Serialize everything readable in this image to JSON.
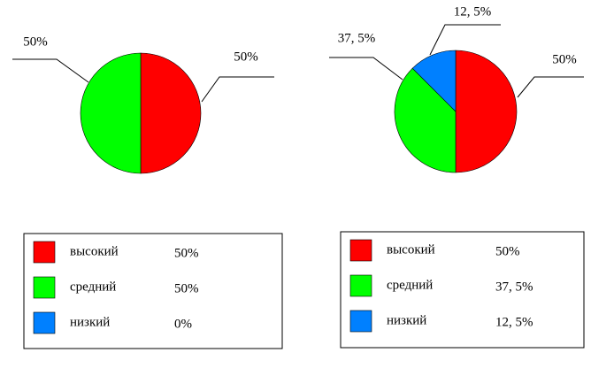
{
  "chart_data": [
    {
      "type": "pie",
      "categories": [
        "высокий",
        "средний",
        "низкий"
      ],
      "values": [
        50,
        50,
        0
      ],
      "value_labels": [
        "50%",
        "50%",
        "0%"
      ],
      "colors": [
        "#ff0000",
        "#00ff00",
        "#0080ff"
      ]
    },
    {
      "type": "pie",
      "categories": [
        "высокий",
        "средний",
        "низкий"
      ],
      "values": [
        50,
        37.5,
        12.5
      ],
      "value_labels": [
        "50%",
        "37, 5%",
        "12, 5%"
      ],
      "colors": [
        "#ff0000",
        "#00ff00",
        "#0080ff"
      ]
    }
  ]
}
